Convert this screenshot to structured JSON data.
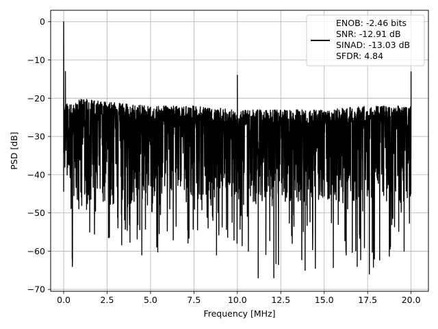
{
  "chart_data": {
    "type": "line",
    "title": "",
    "xlabel": "Frequency [MHz]",
    "ylabel": "PSD [dB]",
    "xlim": [
      -0.75,
      21.0
    ],
    "ylim": [
      -70.5,
      3.0
    ],
    "x_ticks": [
      0.0,
      2.5,
      5.0,
      7.5,
      10.0,
      12.5,
      15.0,
      17.5,
      20.0
    ],
    "x_tick_labels": [
      "0.0",
      "2.5",
      "5.0",
      "7.5",
      "10.0",
      "12.5",
      "15.0",
      "17.5",
      "20.0"
    ],
    "y_ticks": [
      0,
      -10,
      -20,
      -30,
      -40,
      -50,
      -60,
      -70
    ],
    "y_tick_labels": [
      "0",
      "−10",
      "−20",
      "−30",
      "−40",
      "−50",
      "−60",
      "−70"
    ],
    "grid": true,
    "legend_position": "top-right",
    "legend_lines": [
      "ENOB: -2.46 bits",
      "SNR: -12.91 dB",
      "SINAD: -13.03 dB",
      "SFDR: 4.84"
    ],
    "series": [
      {
        "color": "#000000",
        "noise_floor_envelope": {
          "x": [
            0.0,
            0.5,
            1.0,
            2.5,
            5.0,
            7.5,
            10.0,
            12.5,
            15.0,
            17.5,
            20.0
          ],
          "upper": [
            -20,
            -22,
            -20,
            -21,
            -22,
            -22,
            -23,
            -23,
            -23,
            -22,
            -22
          ],
          "lower": [
            -38,
            -46,
            -48,
            -48,
            -48,
            -47,
            -47,
            -47,
            -47,
            -47,
            -47
          ],
          "deep_min": [
            -45,
            -64,
            -56,
            -58,
            -61,
            -59,
            -59,
            -67,
            -65,
            -65,
            -60
          ]
        },
        "peaks": [
          {
            "x": 0.0,
            "y": 0
          },
          {
            "x": 0.1,
            "y": -13
          },
          {
            "x": 10.0,
            "y": -14
          },
          {
            "x": 20.0,
            "y": -13
          }
        ],
        "deep_dips": [
          {
            "x": 0.5,
            "y": -64
          },
          {
            "x": 1.5,
            "y": -55
          },
          {
            "x": 4.5,
            "y": -61
          },
          {
            "x": 8.8,
            "y": -61
          },
          {
            "x": 11.2,
            "y": -67
          },
          {
            "x": 12.1,
            "y": -67
          },
          {
            "x": 13.9,
            "y": -65
          },
          {
            "x": 16.9,
            "y": -64
          },
          {
            "x": 17.6,
            "y": -66
          },
          {
            "x": 19.6,
            "y": -60
          }
        ]
      }
    ]
  }
}
